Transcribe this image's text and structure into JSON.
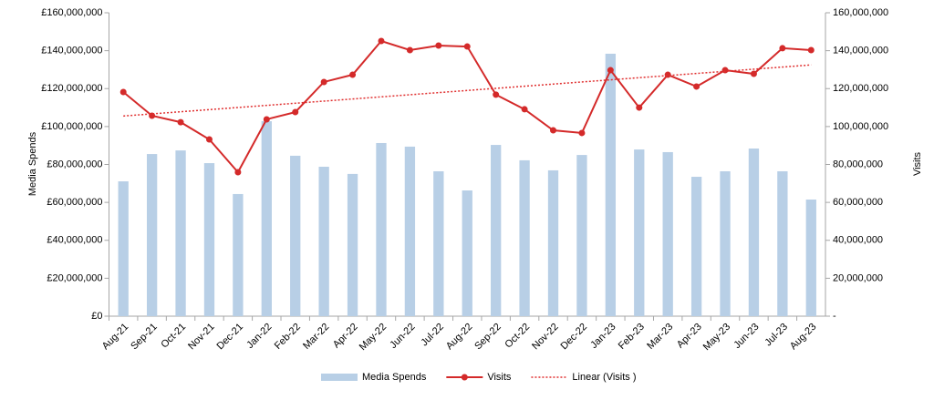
{
  "chart_data": {
    "type": "bar-line",
    "categories": [
      "Aug-21",
      "Sep-21",
      "Oct-21",
      "Nov-21",
      "Dec-21",
      "Jan-22",
      "Feb-22",
      "Mar-22",
      "Apr-22",
      "May-22",
      "Jun-22",
      "Jul-22",
      "Aug-22",
      "Sep-22",
      "Oct-22",
      "Nov-22",
      "Dec-22",
      "Jan-23",
      "Feb-23",
      "Mar-23",
      "Apr-23",
      "May-23",
      "Jun-23",
      "Jul-23",
      "Aug-23"
    ],
    "series": [
      {
        "name": "Media Spends",
        "type": "bar",
        "color": "#b8cfe6",
        "values": [
          71100000,
          85500000,
          87400000,
          80700000,
          64400000,
          102800000,
          84600000,
          78800000,
          75000000,
          91300000,
          89400000,
          76400000,
          66300000,
          90300000,
          82200000,
          76900000,
          85000000,
          138400000,
          87900000,
          86500000,
          73500000,
          76400000,
          88400000,
          76400000,
          61500000
        ]
      },
      {
        "name": "Visits",
        "type": "line",
        "axis": "y2",
        "color": "#d42a2a",
        "values": [
          118200000,
          105700000,
          102300000,
          93200000,
          75900000,
          103800000,
          107600000,
          123500000,
          127300000,
          145100000,
          140300000,
          142700000,
          142200000,
          116800000,
          109100000,
          98000000,
          96600000,
          129700000,
          110000000,
          127300000,
          121100000,
          129700000,
          127800000,
          141300000,
          140300000
        ]
      }
    ],
    "trendline": {
      "name": "Linear (Visits )",
      "type": "linear",
      "color": "#e03030"
    },
    "ylabel": "Media Spends",
    "y2label": "Visits",
    "ylim": [
      0,
      160000000
    ],
    "yticks": [
      {
        "value": 0,
        "label": "£0"
      },
      {
        "value": 20000000,
        "label": "£20,000,000"
      },
      {
        "value": 40000000,
        "label": "£40,000,000"
      },
      {
        "value": 60000000,
        "label": "£60,000,000"
      },
      {
        "value": 80000000,
        "label": "£80,000,000"
      },
      {
        "value": 100000000,
        "label": "£100,000,000"
      },
      {
        "value": 120000000,
        "label": "£120,000,000"
      },
      {
        "value": 140000000,
        "label": "£140,000,000"
      },
      {
        "value": 160000000,
        "label": "£160,000,000"
      }
    ],
    "y2lim": [
      0,
      160000000
    ],
    "y2ticks": [
      {
        "value": 0,
        "label": "-"
      },
      {
        "value": 20000000,
        "label": "20,000,000"
      },
      {
        "value": 40000000,
        "label": "40,000,000"
      },
      {
        "value": 60000000,
        "label": "60,000,000"
      },
      {
        "value": 80000000,
        "label": "80,000,000"
      },
      {
        "value": 100000000,
        "label": "100,000,000"
      },
      {
        "value": 120000000,
        "label": "120,000,000"
      },
      {
        "value": 140000000,
        "label": "140,000,000"
      },
      {
        "value": 160000000,
        "label": "160,000,000"
      }
    ],
    "grid": false,
    "legend": "bottom"
  }
}
